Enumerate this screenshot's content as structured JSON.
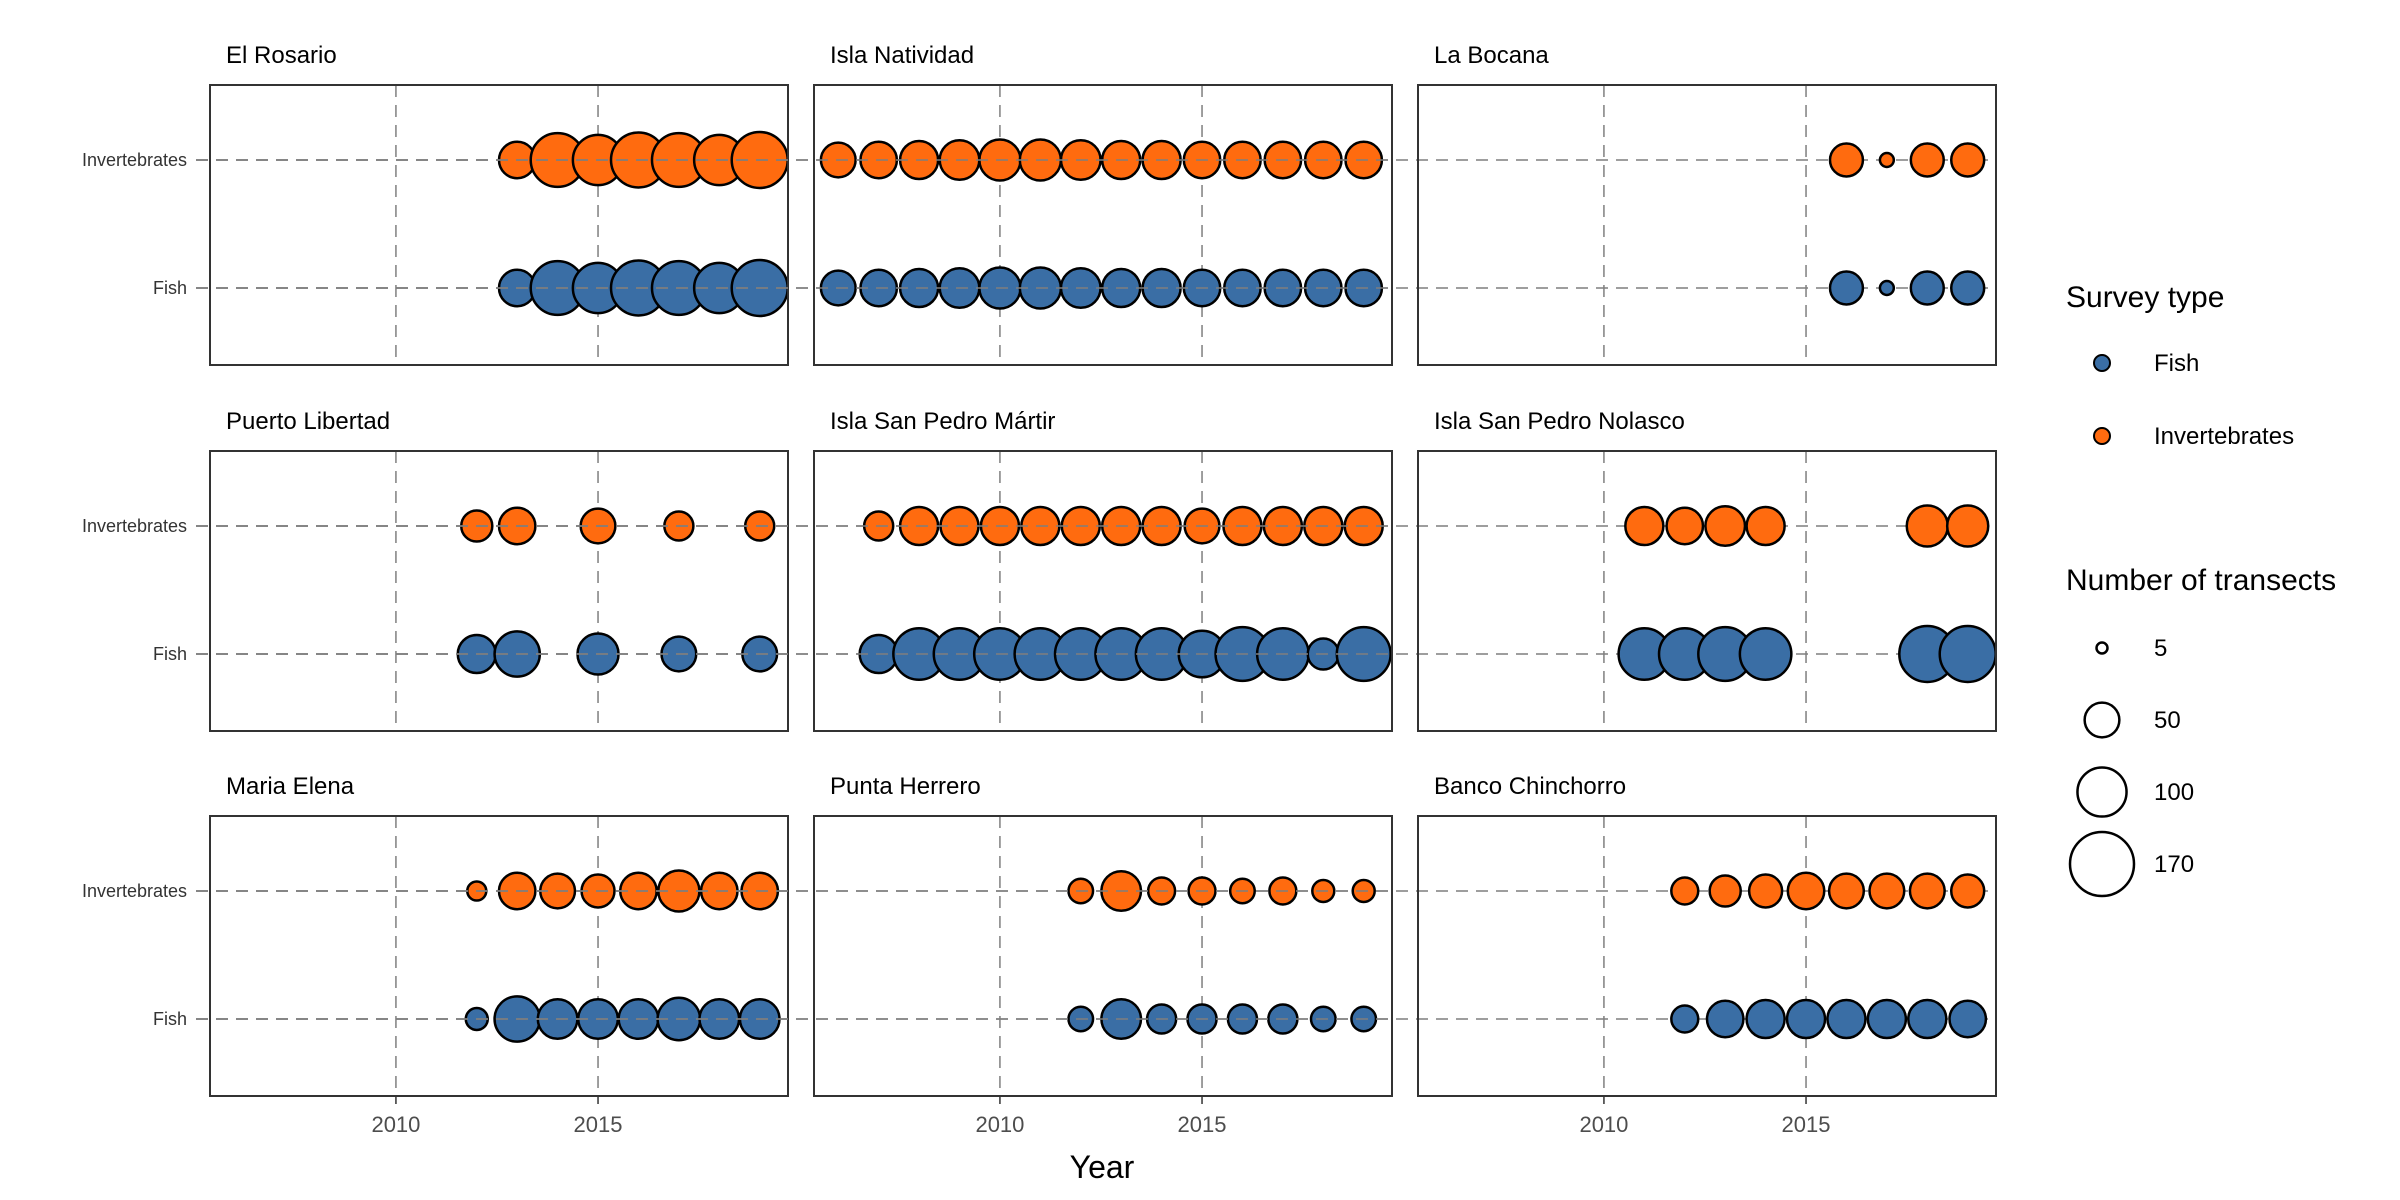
{
  "chart_data": {
    "type": "scatter",
    "xlabel": "Year",
    "x_ticks": [
      2010,
      2015
    ],
    "xlim": [
      2005.4,
      2019.7
    ],
    "y_categories": [
      "Invertebrates",
      "Fish"
    ],
    "grid": true,
    "colors": {
      "Fish": "#3a6ea5",
      "Invertebrates": "#ff6b0f"
    },
    "legend": {
      "placement": "right",
      "color_title": "Survey type",
      "color_items": [
        "Fish",
        "Invertebrates"
      ],
      "size_title": "Number of transects",
      "size_items": [
        "5",
        "50",
        "100",
        "170"
      ],
      "size_values": [
        5,
        50,
        100,
        170
      ]
    },
    "panels": [
      {
        "title": "El Rosario",
        "series": [
          {
            "name": "Invertebrates",
            "x": [
              2013,
              2014,
              2015,
              2016,
              2017,
              2018,
              2019
            ],
            "size": [
              55,
              120,
              105,
              125,
              120,
              105,
              130
            ]
          },
          {
            "name": "Fish",
            "x": [
              2013,
              2014,
              2015,
              2016,
              2017,
              2018,
              2019
            ],
            "size": [
              55,
              120,
              105,
              125,
              120,
              105,
              130
            ]
          }
        ]
      },
      {
        "title": "Isla Natividad",
        "series": [
          {
            "name": "Invertebrates",
            "x": [
              2006,
              2007,
              2008,
              2009,
              2010,
              2011,
              2012,
              2013,
              2014,
              2015,
              2016,
              2017,
              2018,
              2019
            ],
            "size": [
              50,
              55,
              60,
              65,
              70,
              70,
              65,
              60,
              60,
              55,
              55,
              55,
              55,
              55
            ]
          },
          {
            "name": "Fish",
            "x": [
              2006,
              2007,
              2008,
              2009,
              2010,
              2011,
              2012,
              2013,
              2014,
              2015,
              2016,
              2017,
              2018,
              2019
            ],
            "size": [
              50,
              55,
              60,
              65,
              70,
              70,
              65,
              60,
              60,
              55,
              55,
              55,
              55,
              55
            ]
          }
        ]
      },
      {
        "title": "La Bocana",
        "series": [
          {
            "name": "Invertebrates",
            "x": [
              2016,
              2017,
              2018,
              2019
            ],
            "size": [
              45,
              8,
              45,
              45
            ]
          },
          {
            "name": "Fish",
            "x": [
              2016,
              2017,
              2018,
              2019
            ],
            "size": [
              45,
              8,
              45,
              45
            ]
          }
        ]
      },
      {
        "title": "Puerto Libertad",
        "series": [
          {
            "name": "Invertebrates",
            "x": [
              2012,
              2013,
              2015,
              2017,
              2019
            ],
            "size": [
              40,
              55,
              50,
              35,
              35
            ]
          },
          {
            "name": "Fish",
            "x": [
              2012,
              2013,
              2015,
              2017,
              2019
            ],
            "size": [
              60,
              85,
              70,
              50,
              50
            ]
          }
        ]
      },
      {
        "title": "Isla San Pedro Mártir",
        "series": [
          {
            "name": "Invertebrates",
            "x": [
              2007,
              2008,
              2009,
              2010,
              2011,
              2012,
              2013,
              2014,
              2015,
              2016,
              2017,
              2018,
              2019
            ],
            "size": [
              35,
              60,
              60,
              60,
              60,
              60,
              60,
              60,
              50,
              60,
              60,
              60,
              60
            ]
          },
          {
            "name": "Fish",
            "x": [
              2007,
              2008,
              2009,
              2010,
              2011,
              2012,
              2013,
              2014,
              2015,
              2016,
              2017,
              2018,
              2019
            ],
            "size": [
              60,
              110,
              110,
              110,
              110,
              110,
              110,
              110,
              90,
              120,
              110,
              40,
              120
            ]
          }
        ]
      },
      {
        "title": "Isla San Pedro Nolasco",
        "series": [
          {
            "name": "Invertebrates",
            "x": [
              2011,
              2012,
              2013,
              2014,
              2018,
              2019
            ],
            "size": [
              60,
              55,
              65,
              60,
              70,
              70
            ]
          },
          {
            "name": "Fish",
            "x": [
              2011,
              2012,
              2013,
              2014,
              2018,
              2019
            ],
            "size": [
              110,
              110,
              120,
              110,
              130,
              130
            ]
          }
        ]
      },
      {
        "title": "Maria Elena",
        "series": [
          {
            "name": "Invertebrates",
            "x": [
              2012,
              2013,
              2014,
              2015,
              2016,
              2017,
              2018,
              2019
            ],
            "size": [
              15,
              55,
              50,
              45,
              55,
              70,
              55,
              55
            ]
          },
          {
            "name": "Fish",
            "x": [
              2012,
              2013,
              2014,
              2015,
              2016,
              2017,
              2018,
              2019
            ],
            "size": [
              20,
              85,
              65,
              65,
              65,
              75,
              65,
              65
            ]
          }
        ]
      },
      {
        "title": "Punta Herrero",
        "series": [
          {
            "name": "Invertebrates",
            "x": [
              2012,
              2013,
              2014,
              2015,
              2016,
              2017,
              2018,
              2019
            ],
            "size": [
              25,
              65,
              30,
              30,
              25,
              30,
              20,
              20
            ]
          },
          {
            "name": "Fish",
            "x": [
              2012,
              2013,
              2014,
              2015,
              2016,
              2017,
              2018,
              2019
            ],
            "size": [
              25,
              65,
              35,
              35,
              35,
              35,
              25,
              25
            ]
          }
        ]
      },
      {
        "title": "Banco Chinchorro",
        "series": [
          {
            "name": "Invertebrates",
            "x": [
              2012,
              2013,
              2014,
              2015,
              2016,
              2017,
              2018,
              2019
            ],
            "size": [
              30,
              40,
              45,
              55,
              50,
              50,
              50,
              45
            ]
          },
          {
            "name": "Fish",
            "x": [
              2012,
              2013,
              2014,
              2015,
              2016,
              2017,
              2018,
              2019
            ],
            "size": [
              30,
              55,
              60,
              60,
              60,
              60,
              60,
              55
            ]
          }
        ]
      }
    ]
  }
}
